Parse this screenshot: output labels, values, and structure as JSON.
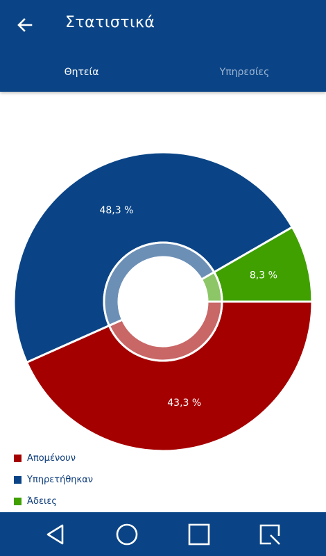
{
  "app": {
    "title": "Στατιστικά",
    "tabs": [
      {
        "label": "Θητεία",
        "selected": true
      },
      {
        "label": "Υπηρεσίες",
        "selected": false
      }
    ]
  },
  "colors": {
    "primary": "#0a4486",
    "red": "#a50000",
    "blue": "#0a4486",
    "green": "#3fa000"
  },
  "chart_data": {
    "type": "pie",
    "donut": true,
    "slices": [
      {
        "label": "Απομένουν",
        "value": 43.3,
        "display": "43,3 %",
        "color": "#a50000"
      },
      {
        "label": "Υπηρετήθηκαν",
        "value": 48.3,
        "display": "48,3 %",
        "color": "#0a4486"
      },
      {
        "label": "Άδειες",
        "value": 8.3,
        "display": "8,3 %",
        "color": "#3fa000"
      }
    ],
    "legend_position": "bottom-left"
  },
  "navbar": {
    "icons": [
      "back-triangle-icon",
      "home-circle-icon",
      "recents-square-icon",
      "search-square-icon"
    ]
  }
}
